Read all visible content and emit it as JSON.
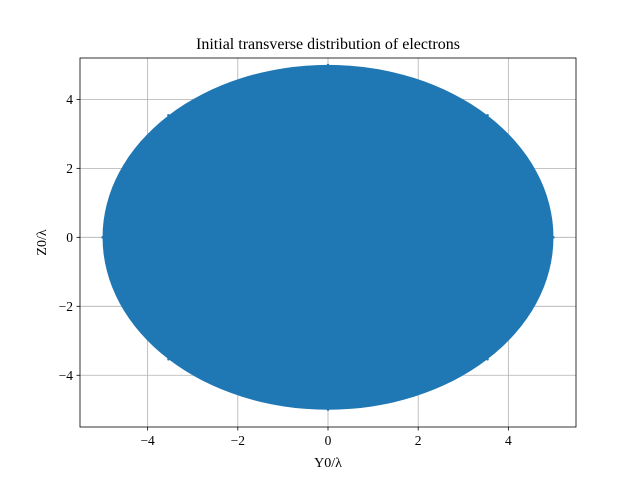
{
  "chart_data": {
    "type": "scatter",
    "title": "Initial transverse distribution of electrons",
    "xlabel": "Y0/λ",
    "ylabel": "Z0/λ",
    "xlim": [
      -5.5,
      5.5
    ],
    "ylim": [
      -5.5,
      5.2
    ],
    "xticks": [
      -4,
      -2,
      0,
      2,
      4
    ],
    "yticks": [
      -4,
      -2,
      0,
      2,
      4
    ],
    "xtick_labels": [
      "−4",
      "−2",
      "0",
      "2",
      "4"
    ],
    "ytick_labels": [
      "−4",
      "−2",
      "0",
      "2",
      "4"
    ],
    "grid": true,
    "series": [
      {
        "color": "#1f77b4",
        "distribution": "uniform-disk",
        "center": [
          0,
          0
        ],
        "radius": 5,
        "points": [
          [
            -5,
            0
          ],
          [
            5,
            0
          ],
          [
            0,
            5
          ],
          [
            0,
            -5
          ],
          [
            3.54,
            3.54
          ],
          [
            -3.54,
            3.54
          ],
          [
            3.54,
            -3.54
          ],
          [
            -3.54,
            -3.54
          ]
        ]
      }
    ]
  }
}
